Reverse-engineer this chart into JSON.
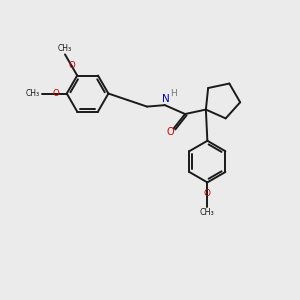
{
  "bg_color": "#ebebeb",
  "bond_color": "#1a1a1a",
  "oxygen_color": "#cc0000",
  "nitrogen_color": "#0000bb",
  "hydrogen_color": "#777777",
  "line_width": 1.4,
  "figsize": [
    3.0,
    3.0
  ],
  "dpi": 100,
  "xlim": [
    0,
    10
  ],
  "ylim": [
    0,
    10
  ]
}
